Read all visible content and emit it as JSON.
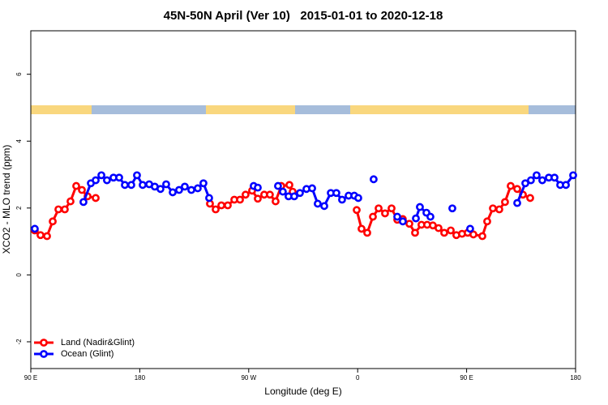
{
  "chart_data": {
    "type": "line",
    "title": "45N-50N April (Ver 10)   2015-01-01 to 2020-12-18",
    "x_label": "Longitude (deg E)",
    "y_label": "XCO2 - MLO trend (ppm)",
    "xlim": [
      90,
      540
    ],
    "xticks": [
      {
        "value": 90,
        "label": "90 E"
      },
      {
        "value": 180,
        "label": "180"
      },
      {
        "value": 270,
        "label": "90 W"
      },
      {
        "value": 360,
        "label": "0"
      },
      {
        "value": 450,
        "label": "90 E"
      },
      {
        "value": 540,
        "label": "180"
      }
    ],
    "ylim": [
      -2.8,
      7.3
    ],
    "yticks": [
      -2,
      0,
      2,
      4,
      6
    ],
    "legend": "bottom-left",
    "series": [
      {
        "name": "Land (Nadir&Glint)",
        "color": "#ff0000",
        "x": [
          93.3,
          98.0,
          103.4,
          108.1,
          112.8,
          118.1,
          122.8,
          127.5,
          132.2,
          136.9,
          143.6,
          null,
          238.0,
          242.7,
          247.4,
          252.7,
          258.1,
          262.8,
          267.4,
          272.8,
          277.5,
          282.8,
          287.5,
          292.2,
          296.9,
          303.6,
          306.3,
          null,
          359.2,
          363.2,
          367.9,
          372.6,
          377.3,
          382.6,
          388.0,
          392.7,
          397.3,
          402.7,
          407.4,
          412.7,
          417.4,
          422.1,
          426.8,
          431.5,
          436.9,
          441.5,
          446.2,
          450.9,
          455.6,
          463.0,
          467.0,
          471.7,
          477.0,
          481.7,
          486.4,
          491.8,
          496.5,
          502.5
        ],
        "values": [
          1.33,
          1.19,
          1.16,
          1.6,
          1.96,
          1.96,
          2.2,
          2.66,
          2.54,
          2.35,
          2.3,
          null,
          2.13,
          1.96,
          2.08,
          2.08,
          2.25,
          2.25,
          2.4,
          2.52,
          2.28,
          2.4,
          2.4,
          2.2,
          2.66,
          2.69,
          2.49,
          null,
          1.94,
          1.38,
          1.26,
          1.74,
          1.99,
          1.84,
          1.99,
          1.65,
          1.67,
          1.53,
          1.26,
          1.5,
          1.5,
          1.48,
          1.4,
          1.26,
          1.33,
          1.19,
          1.23,
          1.26,
          1.21,
          1.16,
          1.6,
          1.99,
          1.96,
          2.18,
          2.66,
          2.57,
          2.4,
          2.3
        ]
      },
      {
        "name": "Ocean (Glint)",
        "color": "#0000ff",
        "x": [
          93.3,
          null,
          133.5,
          139.6,
          143.6,
          148.3,
          152.9,
          158.3,
          163.0,
          167.7,
          173.0,
          177.7,
          182.4,
          187.8,
          192.4,
          197.1,
          201.8,
          207.2,
          212.5,
          217.2,
          222.6,
          227.9,
          232.6,
          237.3,
          null,
          274.1,
          277.5,
          null,
          294.2,
          298.2,
          302.9,
          307.6,
          312.3,
          317.7,
          322.4,
          327.0,
          332.4,
          337.8,
          342.4,
          347.1,
          352.5,
          357.2,
          360.5,
          null,
          373.2,
          null,
          392.7,
          397.3,
          null,
          408.1,
          411.4,
          416.8,
          420.1,
          null,
          438.2,
          null,
          452.9,
          null,
          491.8,
          498.5,
          503.1,
          507.8,
          512.5,
          517.9,
          522.6,
          527.3,
          532.0,
          538.0
        ],
        "values": [
          1.38,
          null,
          2.18,
          2.74,
          2.83,
          2.98,
          2.83,
          2.91,
          2.91,
          2.69,
          2.69,
          2.98,
          2.69,
          2.71,
          2.64,
          2.57,
          2.71,
          2.47,
          2.54,
          2.64,
          2.54,
          2.59,
          2.74,
          2.3,
          null,
          2.66,
          2.61,
          null,
          2.66,
          2.49,
          2.35,
          2.35,
          2.45,
          2.57,
          2.59,
          2.13,
          2.06,
          2.45,
          2.45,
          2.25,
          2.37,
          2.37,
          2.3,
          null,
          2.86,
          null,
          1.74,
          1.6,
          null,
          1.69,
          2.03,
          1.86,
          1.74,
          null,
          1.99,
          null,
          1.38,
          null,
          2.15,
          2.74,
          2.83,
          2.98,
          2.83,
          2.91,
          2.91,
          2.69,
          2.69,
          2.98
        ]
      }
    ]
  }
}
